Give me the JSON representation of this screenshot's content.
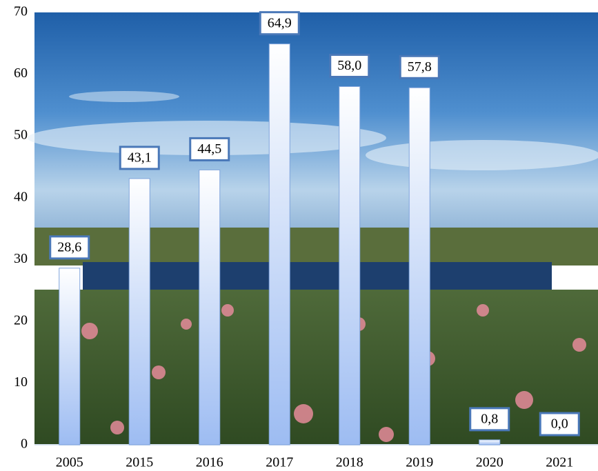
{
  "chart_data": {
    "type": "bar",
    "categories": [
      "2005",
      "2015",
      "2016",
      "2017",
      "2018",
      "2019",
      "2020",
      "2021"
    ],
    "values": [
      28.6,
      43.1,
      44.5,
      64.9,
      58.0,
      57.8,
      0.8,
      0.0
    ],
    "value_labels": [
      "28,6",
      "43,1",
      "44,5",
      "64,9",
      "58,0",
      "57,8",
      "0,8",
      "0,0"
    ],
    "color": "#a9c6f5",
    "ylim": [
      0,
      70
    ],
    "yticks": [
      0,
      10,
      20,
      30,
      40,
      50,
      60,
      70
    ],
    "grid": false
  }
}
